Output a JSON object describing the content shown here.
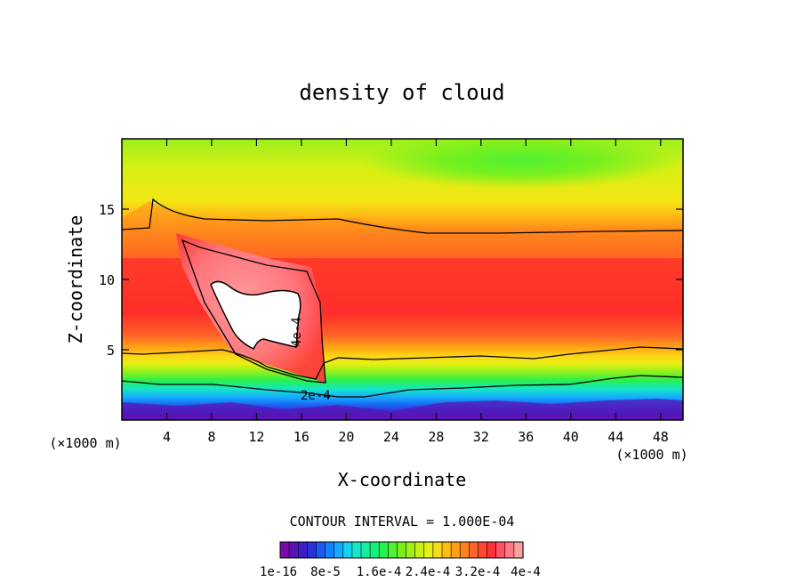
{
  "chart_data": {
    "type": "heatmap",
    "title": "density of cloud",
    "xlabel": "X-coordinate",
    "ylabel": "Z-coordinate",
    "x_unit": "(×1000 m)",
    "z_unit": "(×1000 m)",
    "xlim": [
      0,
      50
    ],
    "ylim": [
      0,
      20
    ],
    "xticks": [
      4,
      8,
      12,
      16,
      20,
      24,
      28,
      32,
      36,
      40,
      44,
      48
    ],
    "yticks": [
      5,
      10,
      15
    ],
    "contour_interval_text": "CONTOUR INTERVAL = 1.000E-04",
    "contour_labels": [
      "4e-4",
      "2e-4"
    ],
    "colorbar": {
      "colors": [
        "#7a0aa8",
        "#5a14b4",
        "#3c1ec8",
        "#2832dc",
        "#1e5af0",
        "#1482ff",
        "#14aaff",
        "#14d2f0",
        "#14e6c8",
        "#14eea0",
        "#14f078",
        "#28f050",
        "#50f032",
        "#78f01e",
        "#a0f014",
        "#c8f014",
        "#e6f014",
        "#f5dc14",
        "#ffbe14",
        "#ffa014",
        "#ff821e",
        "#ff6428",
        "#ff4632",
        "#ff323c",
        "#ff5064",
        "#ff7882",
        "#ffa0a0"
      ],
      "tick_labels": [
        "1e-16",
        "8e-5",
        "1.6e-4",
        "2.4e-4",
        "3.2e-4",
        "4e-4"
      ]
    }
  }
}
